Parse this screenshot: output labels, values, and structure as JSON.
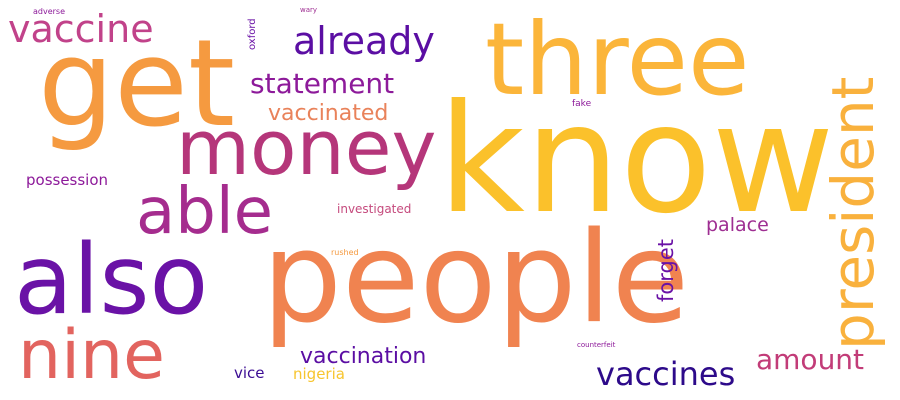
{
  "words": [
    {
      "id": "know",
      "text": "know",
      "color": "#fbc12b"
    },
    {
      "id": "people",
      "text": "people",
      "color": "#f08350"
    },
    {
      "id": "get",
      "text": "get",
      "color": "#f59a40"
    },
    {
      "id": "three",
      "text": "three",
      "color": "#fbb53a"
    },
    {
      "id": "also",
      "text": "also",
      "color": "#6a12a6"
    },
    {
      "id": "money",
      "text": "money",
      "color": "#b5367a"
    },
    {
      "id": "able",
      "text": "able",
      "color": "#a52c8e"
    },
    {
      "id": "nine",
      "text": "nine",
      "color": "#e2645f"
    },
    {
      "id": "president",
      "text": "president",
      "color": "#f9b13d"
    },
    {
      "id": "vaccine",
      "text": "vaccine",
      "color": "#c1428a"
    },
    {
      "id": "already",
      "text": "already",
      "color": "#5b0ea3"
    },
    {
      "id": "vaccines",
      "text": "vaccines",
      "color": "#2d0a8a"
    },
    {
      "id": "statement",
      "text": "statement",
      "color": "#8d1a9a"
    },
    {
      "id": "amount",
      "text": "amount",
      "color": "#c23c78"
    },
    {
      "id": "vaccinated",
      "text": "vaccinated",
      "color": "#e9825a"
    },
    {
      "id": "vaccination",
      "text": "vaccination",
      "color": "#5b0ea3"
    },
    {
      "id": "forget",
      "text": "forget",
      "color": "#6a12a6"
    },
    {
      "id": "palace",
      "text": "palace",
      "color": "#9e2e92"
    },
    {
      "id": "possession",
      "text": "possession",
      "color": "#8d1a9a"
    },
    {
      "id": "vice",
      "text": "vice",
      "color": "#3b0c93"
    },
    {
      "id": "nigeria",
      "text": "nigeria",
      "color": "#f7c52e"
    },
    {
      "id": "investigated",
      "text": "investigated",
      "color": "#c54a7d"
    },
    {
      "id": "oxford",
      "text": "oxford",
      "color": "#6a12a6"
    },
    {
      "id": "fake",
      "text": "fake",
      "color": "#8d1a9a"
    },
    {
      "id": "adverse",
      "text": "adverse",
      "color": "#8d1a9a"
    },
    {
      "id": "wary",
      "text": "wary",
      "color": "#9e2e92"
    },
    {
      "id": "rushed",
      "text": "rushed",
      "color": "#f59a40"
    },
    {
      "id": "counterfeit",
      "text": "counterfeit",
      "color": "#8d1a9a"
    }
  ]
}
